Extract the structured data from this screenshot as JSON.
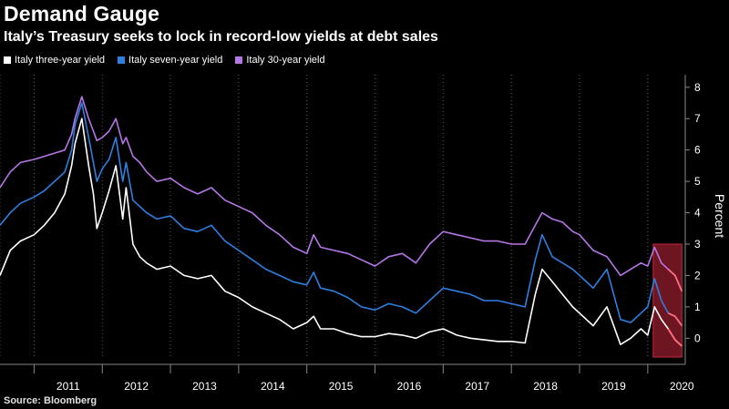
{
  "header": {
    "title": "Demand Gauge",
    "subtitle": "Italy’s Treasury seeks to lock in record-low yields at debt sales"
  },
  "footer": {
    "source": "Source: Bloomberg"
  },
  "colors": {
    "background": "#000000",
    "three_year": "#ffffff",
    "seven_year": "#2f7fe0",
    "thirty_year": "#b576e6",
    "highlight": "#c6283c",
    "recent_tail": "#ff6b7a"
  },
  "chart_data": {
    "type": "line",
    "title": "Demand Gauge",
    "subtitle": "Italy’s Treasury seeks to lock in record-low yields at debt sales",
    "ylabel": "Percent",
    "xlabel": "",
    "x_tick_labels": [
      "2011",
      "2012",
      "2013",
      "2014",
      "2015",
      "2016",
      "2017",
      "2018",
      "2019",
      "2020"
    ],
    "y_tick_labels": [
      "0",
      "1",
      "2",
      "3",
      "4",
      "5",
      "6",
      "7",
      "8"
    ],
    "xlim": [
      2010.5,
      2020.55
    ],
    "ylim": [
      -0.6,
      8.4
    ],
    "legend_position": "top-left",
    "grid": "vertical dotted",
    "highlight_box": {
      "x": [
        2020.08,
        2020.5
      ],
      "y": [
        -0.6,
        3.0
      ]
    },
    "series": [
      {
        "name": "Italy three-year yield",
        "x": [
          2010.5,
          2010.65,
          2010.8,
          2011.0,
          2011.15,
          2011.3,
          2011.45,
          2011.55,
          2011.6,
          2011.7,
          2011.8,
          2011.87,
          2011.92,
          2012.0,
          2012.1,
          2012.2,
          2012.3,
          2012.35,
          2012.45,
          2012.55,
          2012.65,
          2012.8,
          2013.0,
          2013.2,
          2013.4,
          2013.6,
          2013.8,
          2014.0,
          2014.2,
          2014.4,
          2014.6,
          2014.8,
          2015.0,
          2015.1,
          2015.2,
          2015.4,
          2015.6,
          2015.8,
          2016.0,
          2016.2,
          2016.4,
          2016.6,
          2016.8,
          2017.0,
          2017.2,
          2017.4,
          2017.6,
          2017.8,
          2018.0,
          2018.2,
          2018.35,
          2018.45,
          2018.6,
          2018.75,
          2018.9,
          2019.0,
          2019.2,
          2019.4,
          2019.6,
          2019.75,
          2019.9,
          2020.0,
          2020.1,
          2020.2,
          2020.3,
          2020.4,
          2020.5
        ],
        "y": [
          2.0,
          2.8,
          3.1,
          3.3,
          3.6,
          4.0,
          4.6,
          5.5,
          6.2,
          7.0,
          5.5,
          4.6,
          3.5,
          4.0,
          4.7,
          5.5,
          3.8,
          4.8,
          3.0,
          2.6,
          2.4,
          2.2,
          2.3,
          2.0,
          1.9,
          2.0,
          1.5,
          1.3,
          1.0,
          0.8,
          0.6,
          0.3,
          0.5,
          0.7,
          0.3,
          0.3,
          0.15,
          0.05,
          0.05,
          0.15,
          0.1,
          0.0,
          0.2,
          0.3,
          0.1,
          0.0,
          -0.05,
          -0.1,
          -0.1,
          -0.15,
          1.4,
          2.2,
          1.8,
          1.4,
          1.0,
          0.8,
          0.4,
          1.0,
          -0.2,
          0.0,
          0.3,
          0.1,
          1.0,
          0.6,
          0.3,
          -0.05,
          -0.25
        ]
      },
      {
        "name": "Italy seven-year yield",
        "x": [
          2010.5,
          2010.65,
          2010.8,
          2011.0,
          2011.15,
          2011.3,
          2011.45,
          2011.55,
          2011.6,
          2011.7,
          2011.8,
          2011.87,
          2011.92,
          2012.0,
          2012.1,
          2012.2,
          2012.3,
          2012.35,
          2012.45,
          2012.55,
          2012.65,
          2012.8,
          2013.0,
          2013.2,
          2013.4,
          2013.6,
          2013.8,
          2014.0,
          2014.2,
          2014.4,
          2014.6,
          2014.8,
          2015.0,
          2015.1,
          2015.2,
          2015.4,
          2015.6,
          2015.8,
          2016.0,
          2016.2,
          2016.4,
          2016.6,
          2016.8,
          2017.0,
          2017.2,
          2017.4,
          2017.6,
          2017.8,
          2018.0,
          2018.2,
          2018.35,
          2018.45,
          2018.6,
          2018.75,
          2018.9,
          2019.0,
          2019.2,
          2019.4,
          2019.6,
          2019.75,
          2019.9,
          2020.0,
          2020.1,
          2020.2,
          2020.3,
          2020.4,
          2020.5
        ],
        "y": [
          3.6,
          4.0,
          4.3,
          4.5,
          4.7,
          5.0,
          5.3,
          6.0,
          6.8,
          7.5,
          6.4,
          5.6,
          5.0,
          5.4,
          5.7,
          6.4,
          5.0,
          5.6,
          4.4,
          4.2,
          4.0,
          3.8,
          3.9,
          3.5,
          3.4,
          3.6,
          3.1,
          2.8,
          2.5,
          2.2,
          2.0,
          1.8,
          1.7,
          2.1,
          1.6,
          1.5,
          1.3,
          1.0,
          0.9,
          1.1,
          1.0,
          0.8,
          1.2,
          1.6,
          1.5,
          1.4,
          1.2,
          1.2,
          1.1,
          1.0,
          2.5,
          3.3,
          2.6,
          2.4,
          2.2,
          2.0,
          1.6,
          2.2,
          0.6,
          0.5,
          0.8,
          1.0,
          1.9,
          1.2,
          0.8,
          0.7,
          0.4
        ]
      },
      {
        "name": "Italy 30-year yield",
        "x": [
          2010.5,
          2010.65,
          2010.8,
          2011.0,
          2011.15,
          2011.3,
          2011.45,
          2011.55,
          2011.6,
          2011.7,
          2011.8,
          2011.87,
          2011.92,
          2012.0,
          2012.1,
          2012.2,
          2012.3,
          2012.35,
          2012.45,
          2012.55,
          2012.65,
          2012.8,
          2013.0,
          2013.2,
          2013.4,
          2013.6,
          2013.8,
          2014.0,
          2014.2,
          2014.4,
          2014.6,
          2014.8,
          2015.0,
          2015.1,
          2015.2,
          2015.4,
          2015.6,
          2015.8,
          2016.0,
          2016.2,
          2016.4,
          2016.6,
          2016.8,
          2017.0,
          2017.2,
          2017.4,
          2017.6,
          2017.8,
          2018.0,
          2018.2,
          2018.35,
          2018.45,
          2018.6,
          2018.75,
          2018.9,
          2019.0,
          2019.2,
          2019.4,
          2019.6,
          2019.75,
          2019.9,
          2020.0,
          2020.1,
          2020.2,
          2020.3,
          2020.4,
          2020.5
        ],
        "y": [
          4.8,
          5.3,
          5.6,
          5.7,
          5.8,
          5.9,
          6.0,
          6.5,
          7.0,
          7.7,
          7.0,
          6.6,
          6.3,
          6.4,
          6.6,
          7.0,
          6.2,
          6.4,
          5.8,
          5.6,
          5.3,
          5.0,
          5.1,
          4.8,
          4.6,
          4.8,
          4.4,
          4.2,
          4.0,
          3.6,
          3.3,
          2.9,
          2.7,
          3.3,
          2.9,
          2.8,
          2.7,
          2.5,
          2.3,
          2.6,
          2.7,
          2.4,
          3.0,
          3.4,
          3.3,
          3.2,
          3.1,
          3.1,
          3.0,
          3.0,
          3.6,
          4.0,
          3.8,
          3.7,
          3.4,
          3.3,
          2.8,
          2.6,
          2.0,
          2.2,
          2.4,
          2.3,
          2.9,
          2.4,
          2.2,
          2.0,
          1.5
        ]
      }
    ]
  }
}
